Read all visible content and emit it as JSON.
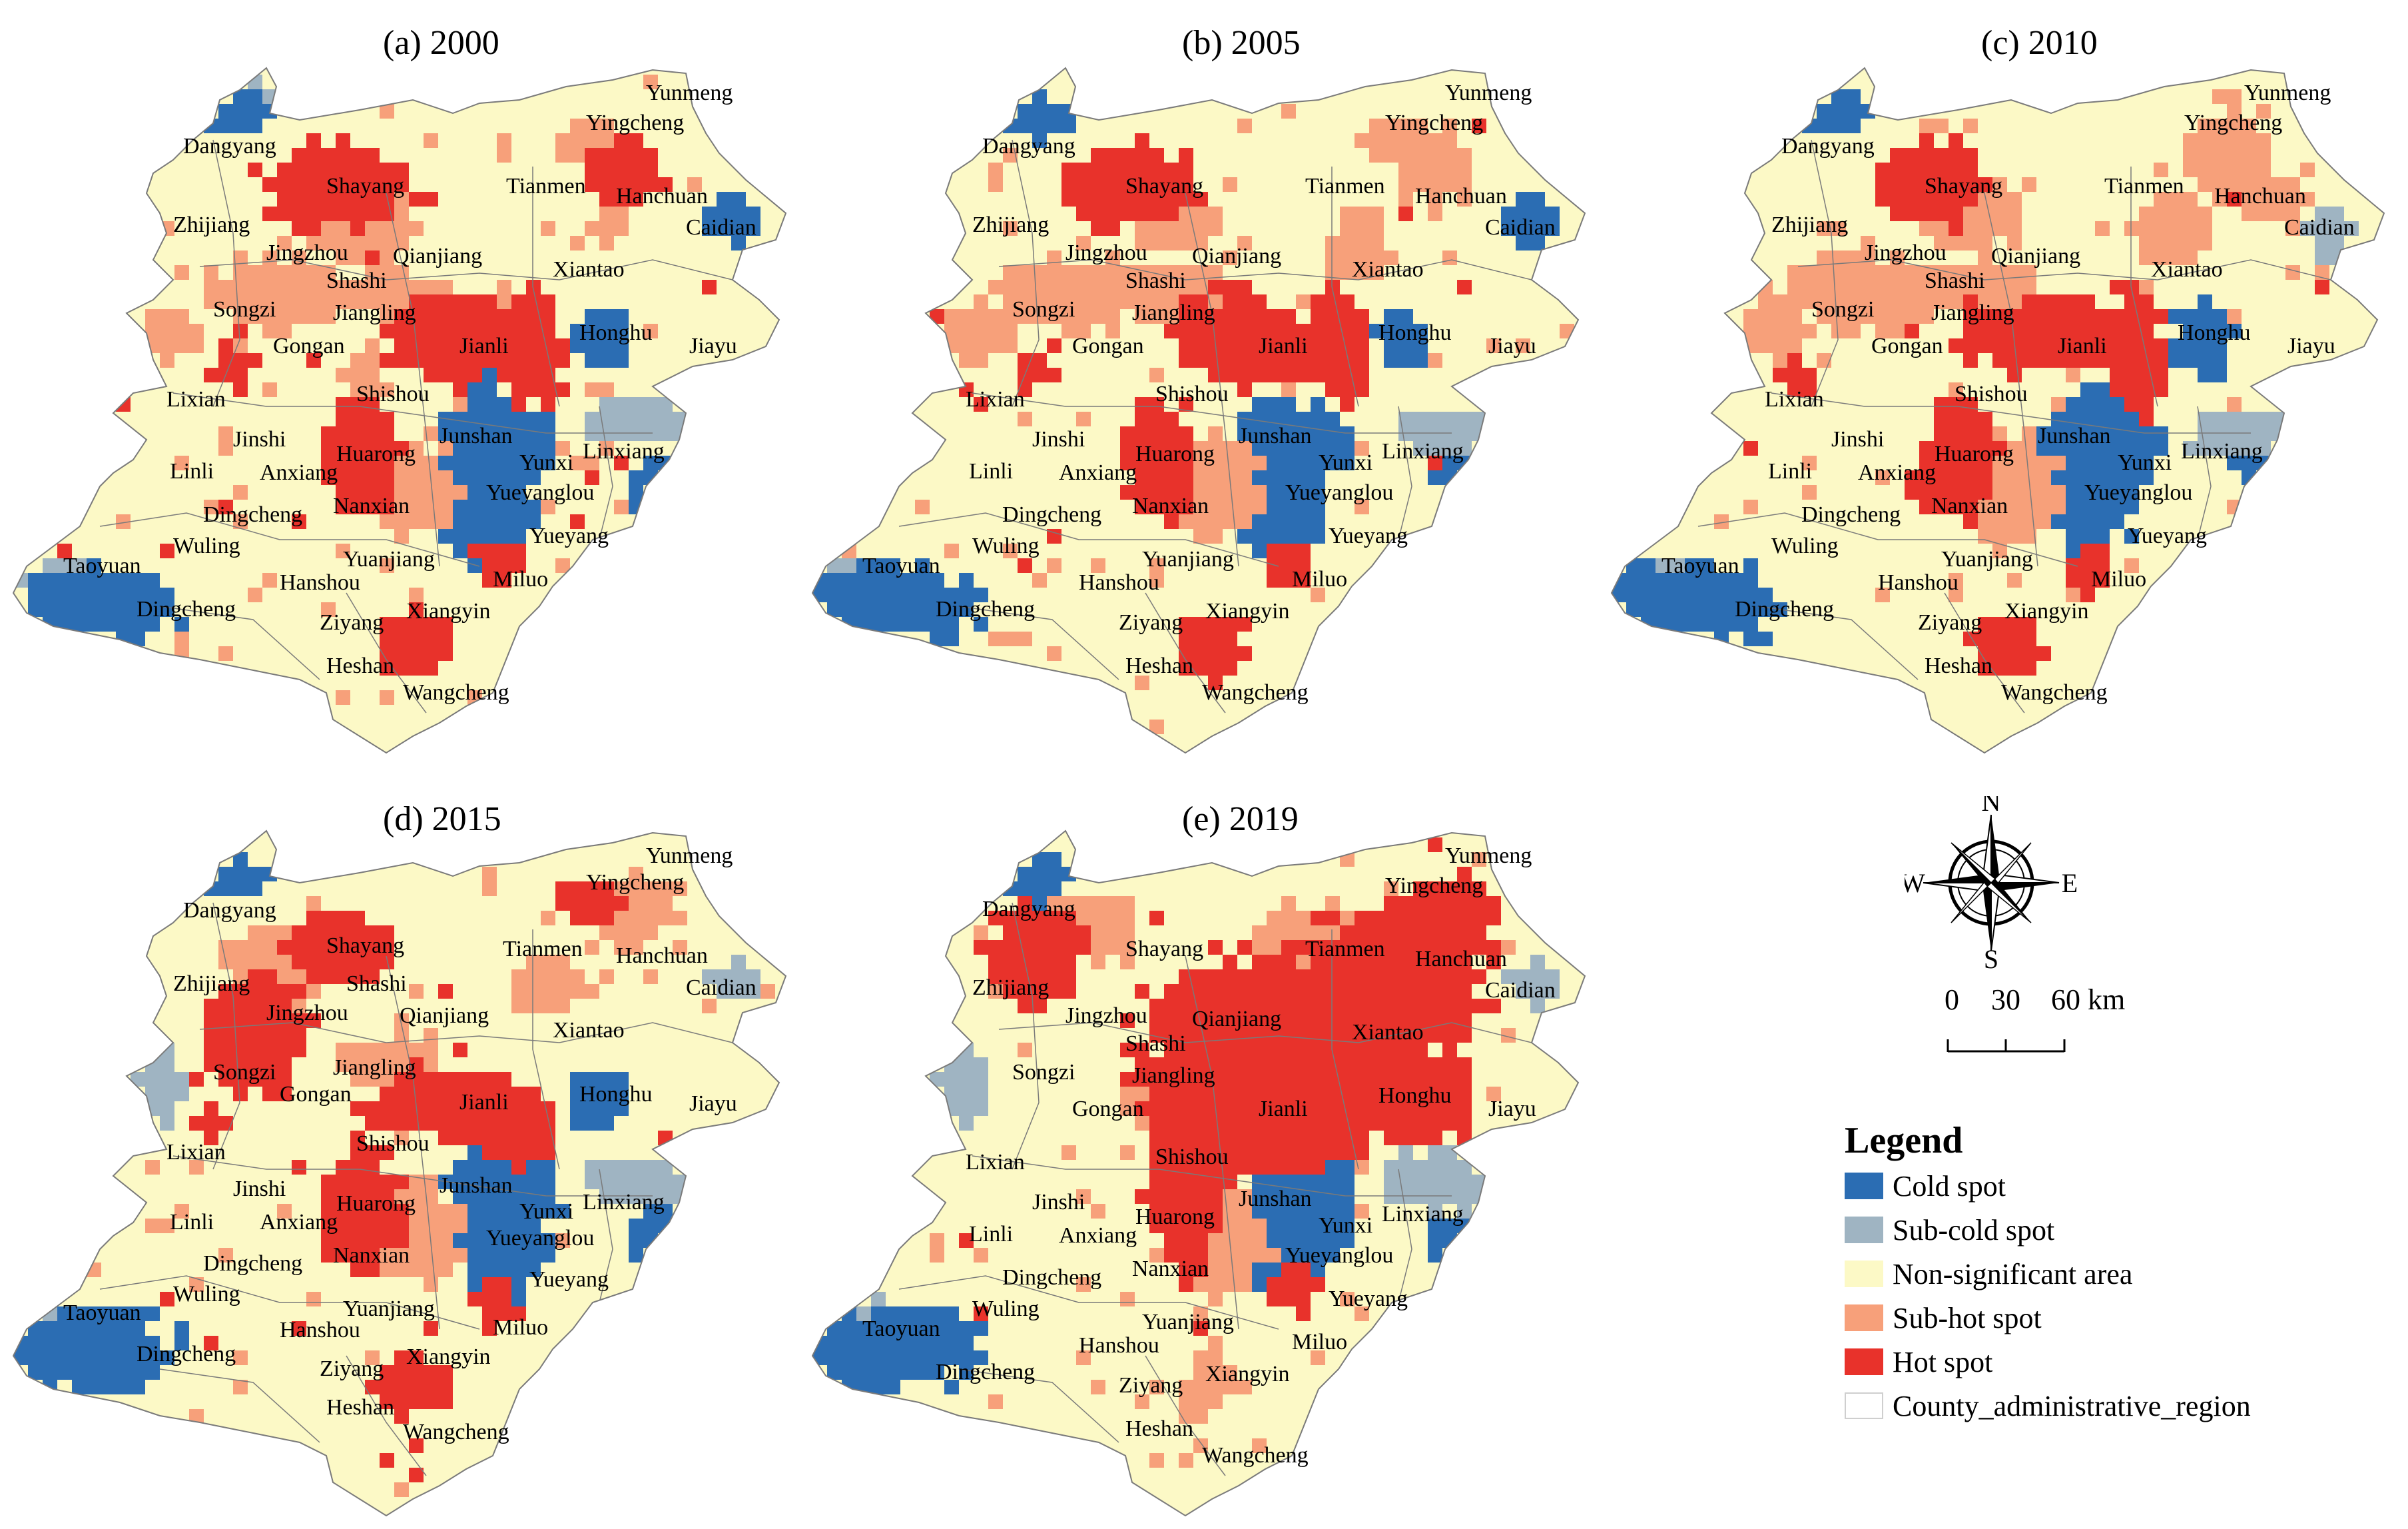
{
  "colors": {
    "cold": "#2b6db3",
    "subcold": "#9fb4c2",
    "nonsig": "#fcf9c6",
    "subhot": "#f7a07a",
    "hot": "#e8322b",
    "boundary": "#7a7a7a"
  },
  "panels": [
    {
      "title": "(a) 2000"
    },
    {
      "title": "(b) 2005"
    },
    {
      "title": "(c) 2010"
    },
    {
      "title": "(d) 2015"
    },
    {
      "title": "(e) 2019"
    }
  ],
  "place_names": [
    "Yunmeng",
    "Yingcheng",
    "Dangyang",
    "Shayang",
    "Tianmen",
    "Hanchuan",
    "Caidian",
    "Zhijiang",
    "Jingzhou",
    "Qianjiang",
    "Shashi",
    "Xiantao",
    "Songzi",
    "Jiangling",
    "Honghu",
    "Jiayu",
    "Gongan",
    "Jianli",
    "Lixian",
    "Shishou",
    "Jinshi",
    "Huarong",
    "Junshan",
    "Linli",
    "Anxiang",
    "Yunxi",
    "Linxiang",
    "Yueyanglou",
    "Dingcheng",
    "Nanxian",
    "Yueyang",
    "Wuling",
    "Taoyuan",
    "Hanshou",
    "Yuanjiang",
    "Miluo",
    "Dingcheng",
    "Xiangyin",
    "Ziyang",
    "Heshan",
    "Wangcheng"
  ],
  "compass": {
    "n": "N",
    "s": "S",
    "e": "E",
    "w": "W"
  },
  "scale": {
    "ticks": [
      "0",
      "30",
      "60 km"
    ]
  },
  "legend": {
    "title": "Legend",
    "items": [
      {
        "label": "Cold spot",
        "color_key": "cold"
      },
      {
        "label": "Sub-cold spot",
        "color_key": "subcold"
      },
      {
        "label": "Non-significant area",
        "color_key": "nonsig"
      },
      {
        "label": "Sub-hot spot",
        "color_key": "subhot"
      },
      {
        "label": "Hot spot",
        "color_key": "hot"
      },
      {
        "label": "County_administrative_region",
        "color_key": "none"
      }
    ]
  }
}
